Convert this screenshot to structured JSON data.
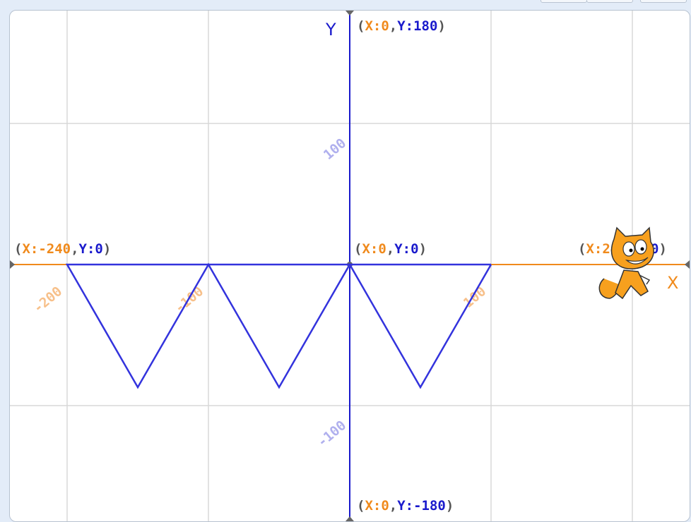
{
  "stage": {
    "axis_labels": {
      "x": "X",
      "y": "Y"
    },
    "coord_labels": [
      {
        "prefix": "(",
        "x_part": "X:0",
        "sep": ",",
        "y_part": "Y:180",
        "suffix": ")",
        "x": 0,
        "y": 180
      },
      {
        "prefix": "(",
        "x_part": "X:-240",
        "sep": ",",
        "y_part": "Y:0",
        "suffix": ")",
        "x": -240,
        "y": 0
      },
      {
        "prefix": "(",
        "x_part": "X:0",
        "sep": ",",
        "y_part": "Y:0",
        "suffix": ")",
        "x": 0,
        "y": 0
      },
      {
        "prefix": "(",
        "x_part": "X:240",
        "sep": ",",
        "y_part": "Y:0",
        "suffix": ")",
        "x": 240,
        "y": 0
      },
      {
        "prefix": "(",
        "x_part": "X:0",
        "sep": ",",
        "y_part": "Y:-180",
        "suffix": ")",
        "x": 0,
        "y": -180
      }
    ],
    "x_ticks": [
      "-200",
      "-100",
      "100"
    ],
    "y_ticks": [
      "100",
      "-100"
    ],
    "colors": {
      "x_axis": "#f08a1c",
      "y_axis": "#1a1acc",
      "pen": "#3333dd",
      "grid": "#d8d8d8",
      "x_tick": "#f7c08a",
      "y_tick": "#b0b0ee"
    },
    "pen_path": [
      [
        -200,
        0
      ],
      [
        100,
        0
      ],
      [
        -200,
        0
      ],
      [
        -150,
        -87
      ],
      [
        -100,
        0
      ],
      [
        -50,
        -87
      ],
      [
        0,
        0
      ],
      [
        50,
        -87
      ],
      [
        100,
        0
      ]
    ],
    "sprite": {
      "name": "cat-sprite",
      "x": 200,
      "y": 0
    }
  }
}
